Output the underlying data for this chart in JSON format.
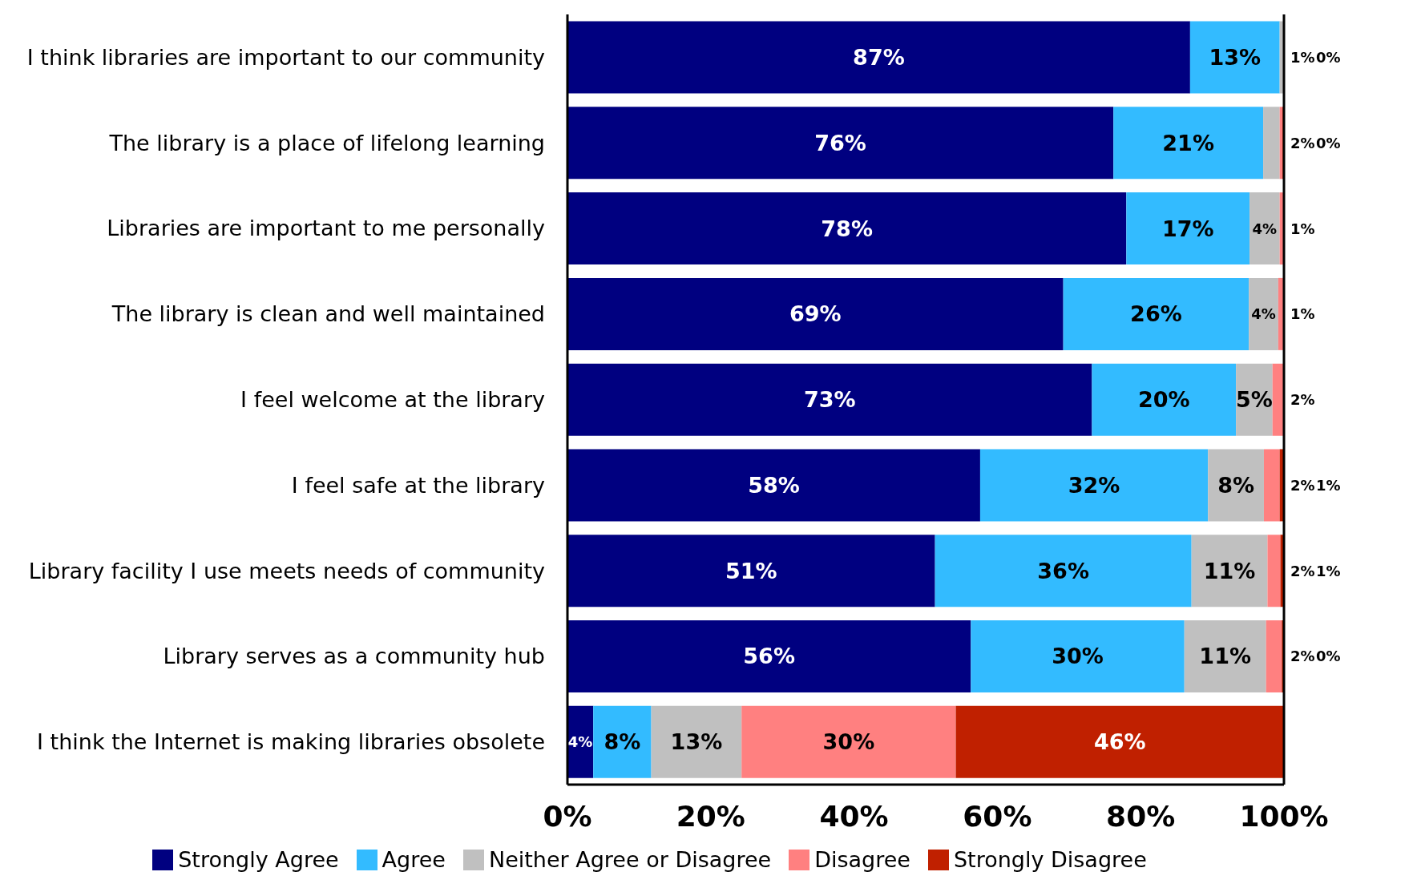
{
  "chart_data": {
    "type": "bar",
    "orientation": "horizontal",
    "stacked": true,
    "categories": [
      "I think libraries are important to our community",
      "The library is a place of lifelong learning",
      "Libraries are important to me personally",
      "The library is clean and well maintained",
      "I feel welcome at the library",
      "I feel safe at the library",
      "Library facility I use meets needs of community",
      "Library serves as a community hub",
      "I think the Internet is making libraries obsolete"
    ],
    "series": [
      {
        "name": "Strongly Agree",
        "color": "#000080",
        "values": [
          86.9,
          76.2,
          78,
          69.2,
          73.2,
          57.6,
          51.3,
          56.3,
          3.6
        ],
        "value_labels": [
          "87%",
          "76%",
          "78%",
          "69%",
          "73%",
          "58%",
          "51%",
          "56%",
          "4%"
        ]
      },
      {
        "name": "Agree",
        "color": "#33bbff",
        "values": [
          12.5,
          20.9,
          17.2,
          25.9,
          20.1,
          31.8,
          35.8,
          29.8,
          8.1
        ],
        "value_labels": [
          "13%",
          "21%",
          "17%",
          "26%",
          "20%",
          "32%",
          "36%",
          "30%",
          "8%"
        ]
      },
      {
        "name": "Neither Agree or Disagree",
        "color": "#c0c0c0",
        "values": [
          0.5,
          2.3,
          4.2,
          4.1,
          5.1,
          7.8,
          10.6,
          11.4,
          12.6
        ],
        "value_labels": [
          "1%",
          "2%",
          "4%",
          "4%",
          "5%",
          "8%",
          "11%",
          "11%",
          "13%"
        ]
      },
      {
        "name": "Disagree",
        "color": "#ff8080",
        "values": [
          0,
          0.4,
          0.6,
          0.8,
          1.6,
          2.2,
          1.8,
          2.2,
          29.9
        ],
        "value_labels": [
          null,
          null,
          "1%",
          "1%",
          "2%",
          "2%",
          "2%",
          "2%",
          "30%"
        ]
      },
      {
        "name": "Strongly Disagree",
        "color": "#c02000",
        "values": [
          0.1,
          0.2,
          0,
          0,
          0,
          0.6,
          0.5,
          0.3,
          45.8
        ],
        "value_labels": [
          "0%",
          "0%",
          null,
          null,
          null,
          "1%",
          "1%",
          "0%",
          "46%"
        ]
      }
    ],
    "xlim": [
      0,
      100
    ],
    "xticks": [
      {
        "value": 0,
        "label": "0%"
      },
      {
        "value": 20,
        "label": "20%"
      },
      {
        "value": 40,
        "label": "40%"
      },
      {
        "value": 60,
        "label": "60%"
      },
      {
        "value": 80,
        "label": "80%"
      },
      {
        "value": 100,
        "label": "100%"
      }
    ],
    "grid": false,
    "legend": "bottom"
  }
}
